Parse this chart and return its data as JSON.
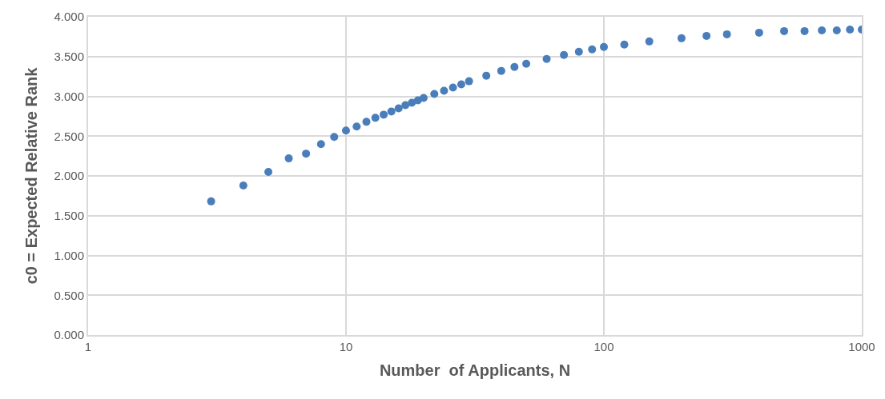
{
  "chart_data": {
    "type": "scatter",
    "xlabel": "Number  of Applicants, N",
    "ylabel": "c0 = Expected Relative Rank",
    "log": "x",
    "grid": true,
    "marker": "circle",
    "xlim": [
      1,
      1000
    ],
    "xticks": [
      1,
      10,
      100,
      1000
    ],
    "ylim": [
      0,
      4
    ],
    "yticks": [
      {
        "value": 0,
        "label": "0.000"
      },
      {
        "value": 0.5,
        "label": "0.500"
      },
      {
        "value": 1,
        "label": "1.000"
      },
      {
        "value": 1.5,
        "label": "1.500"
      },
      {
        "value": 2,
        "label": "2.000"
      },
      {
        "value": 2.5,
        "label": "2.500"
      },
      {
        "value": 3,
        "label": "3.000"
      },
      {
        "value": 3.5,
        "label": "3.500"
      },
      {
        "value": 4,
        "label": "4.000"
      }
    ],
    "series": [
      {
        "color": "#4a7ebb",
        "x": [
          3,
          4,
          5,
          6,
          7,
          8,
          9,
          10,
          11,
          12,
          13,
          14,
          15,
          16,
          17,
          18,
          19,
          20,
          22,
          24,
          26,
          28,
          30,
          35,
          40,
          45,
          50,
          60,
          70,
          80,
          90,
          100,
          120,
          150,
          200,
          250,
          300,
          400,
          500,
          600,
          700,
          800,
          900,
          1000
        ],
        "values": [
          1.68,
          1.88,
          2.05,
          2.22,
          2.28,
          2.4,
          2.49,
          2.57,
          2.62,
          2.68,
          2.73,
          2.77,
          2.81,
          2.85,
          2.89,
          2.92,
          2.95,
          2.98,
          3.03,
          3.07,
          3.11,
          3.15,
          3.19,
          3.26,
          3.32,
          3.37,
          3.41,
          3.47,
          3.52,
          3.56,
          3.59,
          3.62,
          3.65,
          3.69,
          3.73,
          3.76,
          3.78,
          3.8,
          3.82,
          3.82,
          3.83,
          3.83,
          3.84,
          3.84
        ]
      }
    ]
  }
}
